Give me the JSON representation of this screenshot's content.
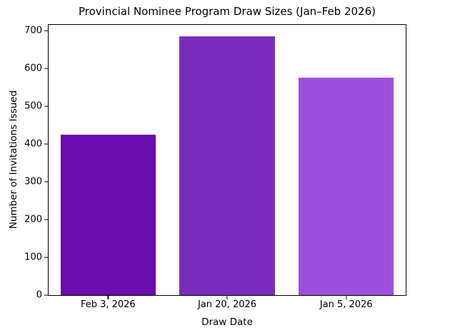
{
  "chart_data": {
    "type": "bar",
    "title": "Provincial Nominee Program Draw Sizes (Jan–Feb 2026)",
    "xlabel": "Draw Date",
    "ylabel": "Number of Invitations Issued",
    "categories": [
      "Feb 3, 2026",
      "Jan 20, 2026",
      "Jan 5, 2026"
    ],
    "values": [
      425,
      685,
      575
    ],
    "bar_colors": [
      "#6A0DAD",
      "#7B2CBF",
      "#9D4EDD"
    ],
    "ylim": [
      0,
      715
    ],
    "yticks": [
      0,
      100,
      200,
      300,
      400,
      500,
      600,
      700
    ],
    "bar_width_frac": 0.8,
    "grid": false,
    "legend": null,
    "background_color": "#FFFFFF",
    "spine_color": "#000000",
    "text_color": "#000000"
  }
}
